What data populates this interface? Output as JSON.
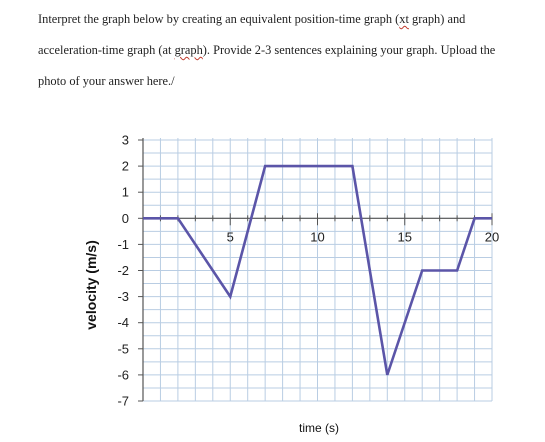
{
  "prompt": {
    "line1_a": "Interpret the graph below by creating an equivalent position-time graph (",
    "line1_b": "xt",
    "line1_c": " graph) and",
    "line2_a": "acceleration-time graph (at ",
    "line2_b": "graph",
    "line2_c": "). Provide 2-3 sentences explaining your graph. Upload the",
    "line3": "photo of your answer here./"
  },
  "chart_data": {
    "type": "line",
    "xlabel": "time (s)",
    "ylabel": "velocity (m/s)",
    "xlim": [
      0,
      20
    ],
    "ylim": [
      -7,
      3
    ],
    "x_tick_labels": [
      "5",
      "10",
      "15",
      "20"
    ],
    "y_tick_labels": [
      "3",
      "2",
      "1",
      "0",
      "-1",
      "-2",
      "-3",
      "-4",
      "-5",
      "-6",
      "-7"
    ],
    "grid": true,
    "series": [
      {
        "x": [
          0,
          2,
          5,
          7,
          12,
          14,
          16,
          18,
          19,
          20
        ],
        "y": [
          0,
          0,
          -3,
          2,
          2,
          -6,
          -2,
          -2,
          0,
          0
        ]
      }
    ],
    "colors": {
      "line": "#5b55a8",
      "grid": "#b9cde3",
      "axis": "#555555"
    }
  }
}
